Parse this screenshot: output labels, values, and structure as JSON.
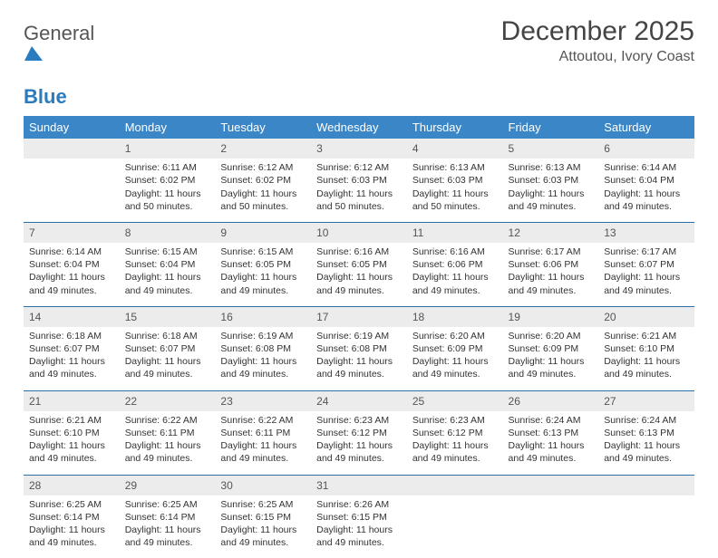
{
  "logo": {
    "word1": "General",
    "word2": "Blue"
  },
  "title": "December 2025",
  "subtitle": "Attoutou, Ivory Coast",
  "colors": {
    "header_bg": "#3b86c7",
    "daynum_bg": "#ececec",
    "row_border": "#2f6fa8",
    "text": "#333333",
    "logo_blue": "#2b7bbf"
  },
  "weekdays": [
    "Sunday",
    "Monday",
    "Tuesday",
    "Wednesday",
    "Thursday",
    "Friday",
    "Saturday"
  ],
  "weeks": [
    {
      "nums": [
        "",
        "1",
        "2",
        "3",
        "4",
        "5",
        "6"
      ],
      "cells": [
        null,
        {
          "sunrise": "Sunrise: 6:11 AM",
          "sunset": "Sunset: 6:02 PM",
          "day1": "Daylight: 11 hours",
          "day2": "and 50 minutes."
        },
        {
          "sunrise": "Sunrise: 6:12 AM",
          "sunset": "Sunset: 6:02 PM",
          "day1": "Daylight: 11 hours",
          "day2": "and 50 minutes."
        },
        {
          "sunrise": "Sunrise: 6:12 AM",
          "sunset": "Sunset: 6:03 PM",
          "day1": "Daylight: 11 hours",
          "day2": "and 50 minutes."
        },
        {
          "sunrise": "Sunrise: 6:13 AM",
          "sunset": "Sunset: 6:03 PM",
          "day1": "Daylight: 11 hours",
          "day2": "and 50 minutes."
        },
        {
          "sunrise": "Sunrise: 6:13 AM",
          "sunset": "Sunset: 6:03 PM",
          "day1": "Daylight: 11 hours",
          "day2": "and 49 minutes."
        },
        {
          "sunrise": "Sunrise: 6:14 AM",
          "sunset": "Sunset: 6:04 PM",
          "day1": "Daylight: 11 hours",
          "day2": "and 49 minutes."
        }
      ]
    },
    {
      "nums": [
        "7",
        "8",
        "9",
        "10",
        "11",
        "12",
        "13"
      ],
      "cells": [
        {
          "sunrise": "Sunrise: 6:14 AM",
          "sunset": "Sunset: 6:04 PM",
          "day1": "Daylight: 11 hours",
          "day2": "and 49 minutes."
        },
        {
          "sunrise": "Sunrise: 6:15 AM",
          "sunset": "Sunset: 6:04 PM",
          "day1": "Daylight: 11 hours",
          "day2": "and 49 minutes."
        },
        {
          "sunrise": "Sunrise: 6:15 AM",
          "sunset": "Sunset: 6:05 PM",
          "day1": "Daylight: 11 hours",
          "day2": "and 49 minutes."
        },
        {
          "sunrise": "Sunrise: 6:16 AM",
          "sunset": "Sunset: 6:05 PM",
          "day1": "Daylight: 11 hours",
          "day2": "and 49 minutes."
        },
        {
          "sunrise": "Sunrise: 6:16 AM",
          "sunset": "Sunset: 6:06 PM",
          "day1": "Daylight: 11 hours",
          "day2": "and 49 minutes."
        },
        {
          "sunrise": "Sunrise: 6:17 AM",
          "sunset": "Sunset: 6:06 PM",
          "day1": "Daylight: 11 hours",
          "day2": "and 49 minutes."
        },
        {
          "sunrise": "Sunrise: 6:17 AM",
          "sunset": "Sunset: 6:07 PM",
          "day1": "Daylight: 11 hours",
          "day2": "and 49 minutes."
        }
      ]
    },
    {
      "nums": [
        "14",
        "15",
        "16",
        "17",
        "18",
        "19",
        "20"
      ],
      "cells": [
        {
          "sunrise": "Sunrise: 6:18 AM",
          "sunset": "Sunset: 6:07 PM",
          "day1": "Daylight: 11 hours",
          "day2": "and 49 minutes."
        },
        {
          "sunrise": "Sunrise: 6:18 AM",
          "sunset": "Sunset: 6:07 PM",
          "day1": "Daylight: 11 hours",
          "day2": "and 49 minutes."
        },
        {
          "sunrise": "Sunrise: 6:19 AM",
          "sunset": "Sunset: 6:08 PM",
          "day1": "Daylight: 11 hours",
          "day2": "and 49 minutes."
        },
        {
          "sunrise": "Sunrise: 6:19 AM",
          "sunset": "Sunset: 6:08 PM",
          "day1": "Daylight: 11 hours",
          "day2": "and 49 minutes."
        },
        {
          "sunrise": "Sunrise: 6:20 AM",
          "sunset": "Sunset: 6:09 PM",
          "day1": "Daylight: 11 hours",
          "day2": "and 49 minutes."
        },
        {
          "sunrise": "Sunrise: 6:20 AM",
          "sunset": "Sunset: 6:09 PM",
          "day1": "Daylight: 11 hours",
          "day2": "and 49 minutes."
        },
        {
          "sunrise": "Sunrise: 6:21 AM",
          "sunset": "Sunset: 6:10 PM",
          "day1": "Daylight: 11 hours",
          "day2": "and 49 minutes."
        }
      ]
    },
    {
      "nums": [
        "21",
        "22",
        "23",
        "24",
        "25",
        "26",
        "27"
      ],
      "cells": [
        {
          "sunrise": "Sunrise: 6:21 AM",
          "sunset": "Sunset: 6:10 PM",
          "day1": "Daylight: 11 hours",
          "day2": "and 49 minutes."
        },
        {
          "sunrise": "Sunrise: 6:22 AM",
          "sunset": "Sunset: 6:11 PM",
          "day1": "Daylight: 11 hours",
          "day2": "and 49 minutes."
        },
        {
          "sunrise": "Sunrise: 6:22 AM",
          "sunset": "Sunset: 6:11 PM",
          "day1": "Daylight: 11 hours",
          "day2": "and 49 minutes."
        },
        {
          "sunrise": "Sunrise: 6:23 AM",
          "sunset": "Sunset: 6:12 PM",
          "day1": "Daylight: 11 hours",
          "day2": "and 49 minutes."
        },
        {
          "sunrise": "Sunrise: 6:23 AM",
          "sunset": "Sunset: 6:12 PM",
          "day1": "Daylight: 11 hours",
          "day2": "and 49 minutes."
        },
        {
          "sunrise": "Sunrise: 6:24 AM",
          "sunset": "Sunset: 6:13 PM",
          "day1": "Daylight: 11 hours",
          "day2": "and 49 minutes."
        },
        {
          "sunrise": "Sunrise: 6:24 AM",
          "sunset": "Sunset: 6:13 PM",
          "day1": "Daylight: 11 hours",
          "day2": "and 49 minutes."
        }
      ]
    },
    {
      "nums": [
        "28",
        "29",
        "30",
        "31",
        "",
        "",
        ""
      ],
      "cells": [
        {
          "sunrise": "Sunrise: 6:25 AM",
          "sunset": "Sunset: 6:14 PM",
          "day1": "Daylight: 11 hours",
          "day2": "and 49 minutes."
        },
        {
          "sunrise": "Sunrise: 6:25 AM",
          "sunset": "Sunset: 6:14 PM",
          "day1": "Daylight: 11 hours",
          "day2": "and 49 minutes."
        },
        {
          "sunrise": "Sunrise: 6:25 AM",
          "sunset": "Sunset: 6:15 PM",
          "day1": "Daylight: 11 hours",
          "day2": "and 49 minutes."
        },
        {
          "sunrise": "Sunrise: 6:26 AM",
          "sunset": "Sunset: 6:15 PM",
          "day1": "Daylight: 11 hours",
          "day2": "and 49 minutes."
        },
        null,
        null,
        null
      ]
    }
  ]
}
